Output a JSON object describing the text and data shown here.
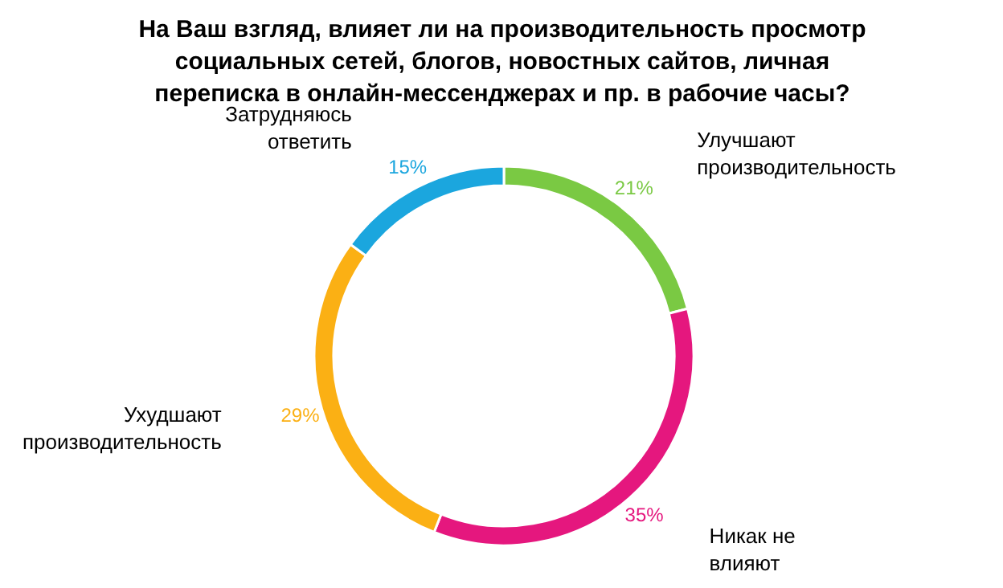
{
  "chart_data": {
    "type": "donut",
    "title": "На Ваш взгляд, влияет ли на производительность просмотр социальных сетей, блогов, новостных сайтов, личная переписка в онлайн-мессенджерах и пр. в рабочие часы?",
    "categories": [
      "Улучшают производительность",
      "Никак не влияют",
      "Ухудшают производительность",
      "Затрудняюсь ответить"
    ],
    "values": [
      21,
      35,
      29,
      15
    ],
    "colors": [
      "#7ac943",
      "#e5177e",
      "#fbb014",
      "#1ba6de"
    ],
    "value_labels": [
      "21%",
      "35%",
      "29%",
      "15%"
    ]
  }
}
